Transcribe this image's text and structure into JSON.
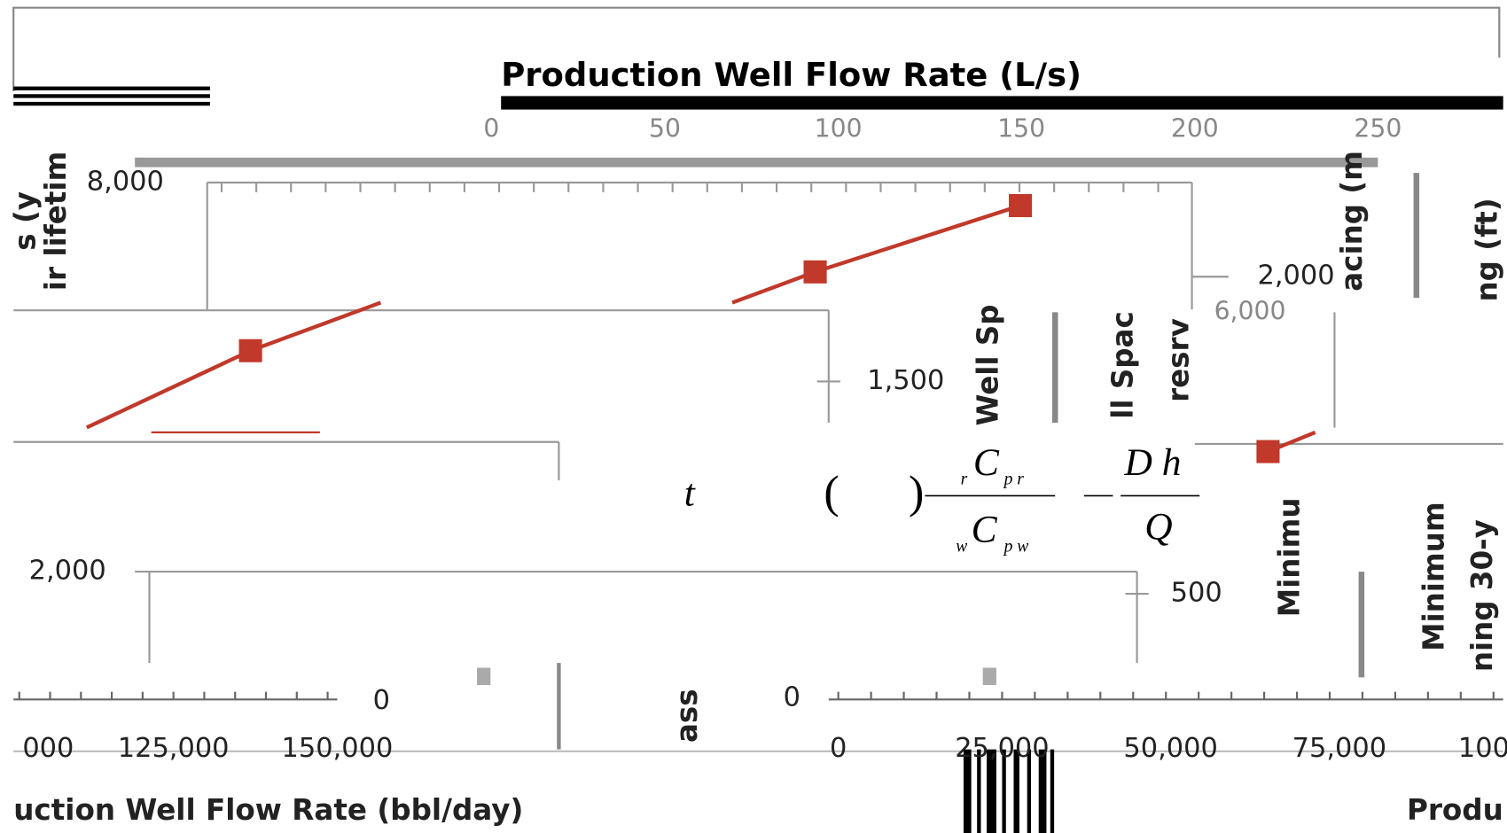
{
  "top_chart": {
    "title": "Production Well Flow Rate (L/s)",
    "x_ticks": [
      "0",
      "50",
      "100",
      "150",
      "200",
      "250"
    ]
  },
  "upper_chart": {
    "y_tick_left": "8,000",
    "y_labels_left": [
      "s (y",
      "ir lifetim"
    ],
    "y_tick_right": "2,000",
    "y_labels_right": [
      "acing (m",
      "ng (ft)"
    ]
  },
  "middle_chart": {
    "y_tick": "1,500",
    "y_labels": [
      "Well Sp",
      "ll Spac",
      "resrv"
    ],
    "y_tick_right": "6,000"
  },
  "equation": {
    "lhs": "t",
    "open": "(",
    "close": ")",
    "num1_pre": "r",
    "num1": "C",
    "num1_post": "p r",
    "den1_pre": "w",
    "den1": "C",
    "den1_post": "p w",
    "dash": "—",
    "num2": "D  h",
    "den2": "Q"
  },
  "lower_chart": {
    "y_tick_left": "2,000",
    "y_tick_right": "500",
    "y_labels": [
      "Minimu",
      "Minimum",
      "ning 30-y"
    ],
    "zero_ticks": [
      "0",
      "0"
    ],
    "mid_label": "ass"
  },
  "bottom_axes": {
    "left_ticks": [
      "000",
      "125,000",
      "150,000"
    ],
    "left_label": "uction Well Flow Rate (bbl/day)",
    "right_ticks": [
      "0",
      "25,000",
      "50,000",
      "75,000",
      "100"
    ],
    "right_label": "Produ"
  }
}
